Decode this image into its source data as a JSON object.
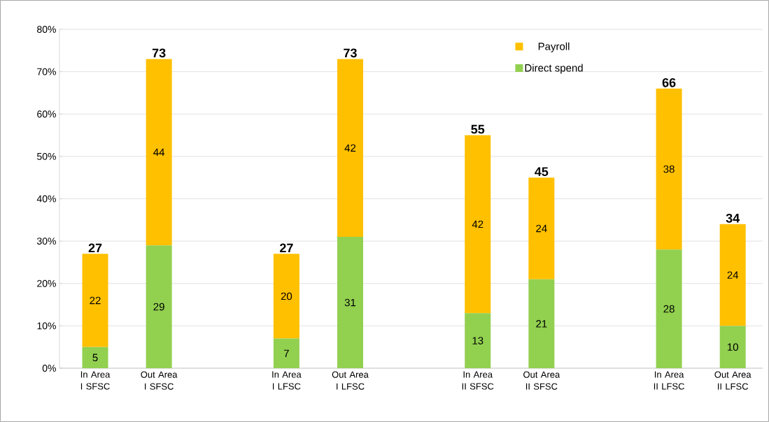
{
  "chart_data": {
    "type": "bar",
    "stacked": true,
    "categories": [
      "In Area I SFSC",
      "Out Area I SFSC",
      null,
      "In Area I LFSC",
      "Out Area I LFSC",
      null,
      "In Area II SFSC",
      "Out Area II SFSC",
      null,
      "In Area II LFSC",
      "Out Area II LFSC"
    ],
    "series": [
      {
        "name": "Direct spend",
        "color": "#92d050",
        "values": [
          5,
          29,
          null,
          7,
          31,
          null,
          13,
          21,
          null,
          28,
          10
        ]
      },
      {
        "name": "Payroll",
        "color": "#ffc000",
        "values": [
          22,
          44,
          null,
          20,
          42,
          null,
          42,
          24,
          null,
          38,
          24
        ]
      }
    ],
    "totals": [
      "27",
      "73",
      null,
      "27",
      "73",
      null,
      "55",
      "45",
      null,
      "66",
      "34"
    ],
    "data_labels": true,
    "ylim": [
      0,
      80
    ],
    "yticks": [
      {
        "value": 0,
        "label": "0%"
      },
      {
        "value": 10,
        "label": "10%"
      },
      {
        "value": 20,
        "label": "20%"
      },
      {
        "value": 30,
        "label": "30%"
      },
      {
        "value": 40,
        "label": "40%"
      },
      {
        "value": 50,
        "label": "50%"
      },
      {
        "value": 60,
        "label": "60%"
      },
      {
        "value": 70,
        "label": "70%"
      },
      {
        "value": 80,
        "label": "80%"
      }
    ],
    "grid": "y",
    "legend": "top right"
  }
}
